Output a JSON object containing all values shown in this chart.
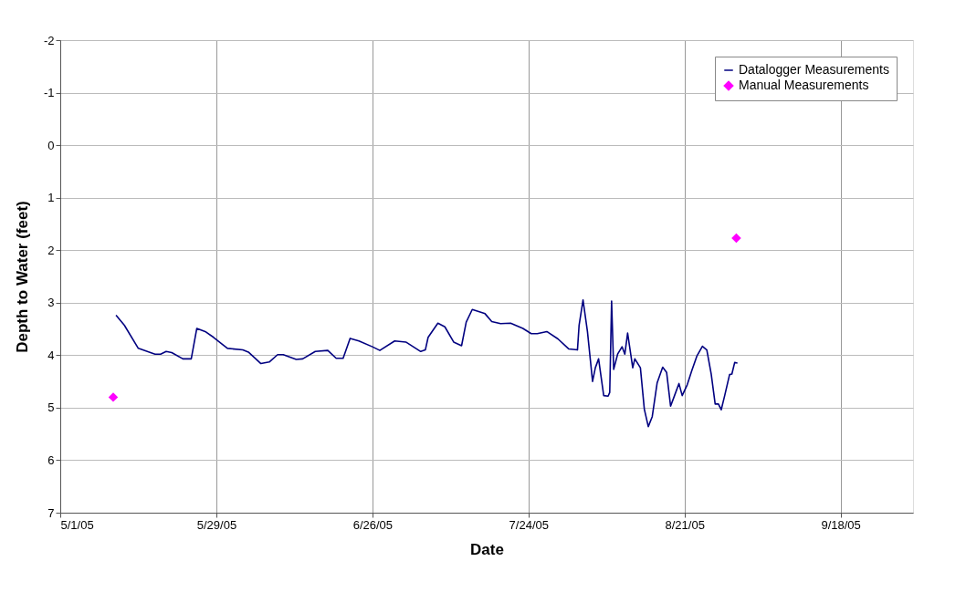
{
  "chart_data": {
    "type": "line",
    "xlabel": "Date",
    "ylabel": "Depth to Water (feet)",
    "xlim": [
      "2005-05-01",
      "2005-10-01"
    ],
    "xticks": [
      {
        "value": "2005-05-01",
        "label": "5/1/05"
      },
      {
        "value": "2005-05-29",
        "label": "5/29/05"
      },
      {
        "value": "2005-06-26",
        "label": "6/26/05"
      },
      {
        "value": "2005-07-24",
        "label": "7/24/05"
      },
      {
        "value": "2005-08-21",
        "label": "8/21/05"
      },
      {
        "value": "2005-09-18",
        "label": "9/18/05"
      }
    ],
    "ylim": [
      7,
      -2
    ],
    "yticks": [
      -2,
      -1,
      0,
      1,
      2,
      3,
      4,
      5,
      6,
      7
    ],
    "grid": true,
    "legend": "top right",
    "series": [
      {
        "name": "Datalogger Measurements",
        "color": "#000080",
        "marker": "none",
        "line_style": "solid",
        "x": [
          "2005-05-11",
          "2005-05-12T12:00",
          "2005-05-15",
          "2005-05-18",
          "2005-05-19",
          "2005-05-20",
          "2005-05-21",
          "2005-05-23",
          "2005-05-24T12:00",
          "2005-05-25T12:00",
          "2005-05-27",
          "2005-05-28T12:00",
          "2005-05-31",
          "2005-06-02T18:00",
          "2005-06-03T18:00",
          "2005-06-06",
          "2005-06-07T12:00",
          "2005-06-09",
          "2005-06-10",
          "2005-06-12T08:00",
          "2005-06-13T12:00",
          "2005-06-15T18:00",
          "2005-06-18",
          "2005-06-19T12:00",
          "2005-06-20T18:00",
          "2005-06-22",
          "2005-06-23T14:00",
          "2005-06-26",
          "2005-06-27T08:00",
          "2005-06-30",
          "2005-07-02",
          "2005-07-04T16:00",
          "2005-07-05T12:00",
          "2005-07-06",
          "2005-07-07T18:00",
          "2005-07-09",
          "2005-07-10T14:00",
          "2005-07-12",
          "2005-07-12T20:00",
          "2005-07-13T22:00",
          "2005-07-16T05:00",
          "2005-07-17T10:00",
          "2005-07-19",
          "2005-07-20T19:00",
          "2005-07-23",
          "2005-07-24T12:00",
          "2005-07-25T14:00",
          "2005-07-27T07:00",
          "2005-07-29T07:00",
          "2005-07-31T05:00",
          "2005-08-01T19:00",
          "2005-08-02T02:00",
          "2005-08-02T19:00",
          "2005-08-03T14:00",
          "2005-08-04T12:00",
          "2005-08-05",
          "2005-08-05T14:00",
          "2005-08-06T12:00",
          "2005-08-07T07:00",
          "2005-08-07T14:00",
          "2005-08-07T22:00",
          "2005-08-08T07:00",
          "2005-08-09",
          "2005-08-09T19:00",
          "2005-08-10T07:00",
          "2005-08-10T19:00",
          "2005-08-11T17:00",
          "2005-08-12T02:00",
          "2005-08-13T02:00",
          "2005-08-13T19:00",
          "2005-08-14T12:00",
          "2005-08-15T05:00",
          "2005-08-16T02:00",
          "2005-08-17T02:00",
          "2005-08-17T19:00",
          "2005-08-18T12:00",
          "2005-08-19T05:00",
          "2005-08-20",
          "2005-08-20T14:00",
          "2005-08-21T12:00",
          "2005-08-22T07:00",
          "2005-08-23T05:00",
          "2005-08-24T05:00",
          "2005-08-25",
          "2005-08-25T19:00",
          "2005-08-26T12:00",
          "2005-08-27T02:00",
          "2005-08-27T14:00",
          "2005-08-28T05:00",
          "2005-08-29T02:00",
          "2005-08-29T12:00",
          "2005-08-30",
          "2005-08-30T12:00"
        ],
        "values": [
          3.24,
          3.43,
          3.87,
          3.98,
          3.98,
          3.93,
          3.95,
          4.07,
          4.07,
          3.49,
          3.55,
          3.66,
          3.87,
          3.9,
          3.94,
          4.16,
          4.13,
          3.99,
          3.99,
          4.08,
          4.07,
          3.93,
          3.91,
          4.06,
          4.06,
          3.68,
          3.73,
          3.84,
          3.91,
          3.73,
          3.75,
          3.93,
          3.9,
          3.66,
          3.39,
          3.46,
          3.75,
          3.82,
          3.37,
          3.13,
          3.21,
          3.36,
          3.4,
          3.39,
          3.49,
          3.59,
          3.59,
          3.55,
          3.69,
          3.88,
          3.9,
          3.43,
          2.95,
          3.55,
          4.5,
          4.24,
          4.07,
          4.77,
          4.78,
          4.71,
          2.97,
          4.27,
          3.98,
          3.84,
          3.98,
          3.58,
          4.24,
          4.07,
          4.24,
          5.03,
          5.36,
          5.17,
          4.53,
          4.23,
          4.33,
          4.97,
          4.77,
          4.54,
          4.77,
          4.56,
          4.3,
          4.02,
          3.83,
          3.9,
          4.36,
          4.93,
          4.93,
          5.04,
          4.77,
          4.37,
          4.36,
          4.14,
          4.15
        ]
      },
      {
        "name": "Manual Measurements",
        "type": "scatter",
        "color": "#ff00ff",
        "marker": "diamond",
        "x": [
          "2005-05-10T12:00",
          "2005-08-30T07:00"
        ],
        "values": [
          4.8,
          1.77
        ]
      }
    ]
  }
}
